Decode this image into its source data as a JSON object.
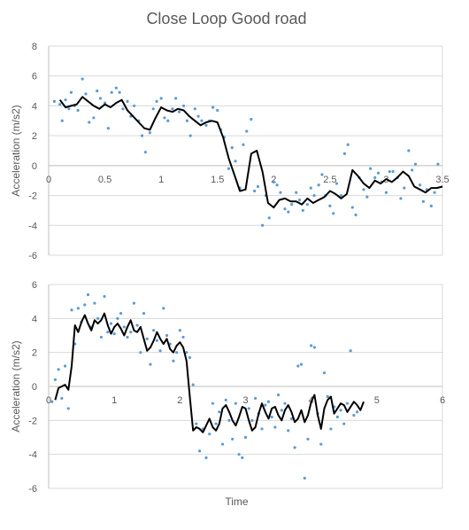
{
  "figure": {
    "title": "Close Loop Good road"
  },
  "chart_data": [
    {
      "type": "scatter",
      "title": "Close Loop Good road",
      "ylabel": "Acceleration (m/s2)",
      "xlabel": "",
      "xlim": [
        0,
        3.5
      ],
      "ylim": [
        -6,
        8
      ],
      "xticks": [
        "0",
        "0.5",
        "1",
        "1.5",
        "2",
        "2.5",
        "3",
        "3.5"
      ],
      "yticks": [
        "-6",
        "-4",
        "-2",
        "0",
        "2",
        "4",
        "6",
        "8"
      ],
      "grid": true,
      "legend": "none",
      "colors": {
        "points": "#5b9bd5",
        "line": "#000000",
        "grid": "#d9d9d9"
      },
      "series": [
        {
          "kind": "points",
          "x": [
            0.05,
            0.1,
            0.12,
            0.15,
            0.18,
            0.2,
            0.23,
            0.26,
            0.3,
            0.33,
            0.36,
            0.4,
            0.43,
            0.46,
            0.5,
            0.53,
            0.56,
            0.6,
            0.63,
            0.66,
            0.7,
            0.73,
            0.76,
            0.8,
            0.83,
            0.86,
            0.9,
            0.93,
            0.96,
            1.0,
            1.03,
            1.06,
            1.1,
            1.13,
            1.16,
            1.2,
            1.23,
            1.26,
            1.3,
            1.33,
            1.36,
            1.4,
            1.43,
            1.46,
            1.5,
            1.53,
            1.56,
            1.6,
            1.63,
            1.66,
            1.7,
            1.73,
            1.76,
            1.8,
            1.83,
            1.86,
            1.9,
            1.93,
            1.96,
            2.0,
            2.03,
            2.06,
            2.1,
            2.13,
            2.16,
            2.2,
            2.23,
            2.26,
            2.3,
            2.33,
            2.36,
            2.4,
            2.43,
            2.46,
            2.5,
            2.53,
            2.56,
            2.6,
            2.63,
            2.66,
            2.7,
            2.73,
            2.76,
            2.8,
            2.83,
            2.86,
            2.9,
            2.93,
            2.96,
            3.0,
            3.03,
            3.06,
            3.1,
            3.13,
            3.16,
            3.2,
            3.23,
            3.26,
            3.3,
            3.33,
            3.36,
            3.4,
            3.43,
            3.46
          ],
          "y": [
            4.3,
            4.1,
            3.0,
            4.4,
            3.8,
            4.9,
            4.0,
            3.7,
            5.8,
            4.8,
            2.9,
            3.2,
            5.0,
            4.5,
            4.2,
            2.5,
            4.9,
            5.2,
            4.9,
            3.8,
            4.3,
            3.3,
            4.0,
            3.0,
            2.0,
            0.9,
            2.2,
            3.8,
            4.3,
            4.5,
            3.2,
            3.0,
            3.8,
            4.5,
            3.6,
            4.0,
            3.0,
            2.0,
            3.8,
            3.3,
            3.0,
            2.7,
            3.0,
            3.9,
            3.7,
            2.4,
            1.9,
            -0.2,
            1.2,
            0.3,
            -1.5,
            1.4,
            2.3,
            3.1,
            -1.7,
            -1.4,
            -4.0,
            -2.0,
            -3.5,
            -1.1,
            -1.3,
            -1.8,
            -2.9,
            -3.1,
            -2.6,
            -1.8,
            -2.3,
            -3.0,
            -2.6,
            -1.5,
            -2.0,
            -1.3,
            -0.6,
            -2.0,
            -2.7,
            -3.2,
            -1.2,
            -2.0,
            0.8,
            1.4,
            -2.8,
            -3.3,
            -0.8,
            -1.6,
            -2.1,
            -0.2,
            -0.8,
            -0.5,
            -1.1,
            -1.8,
            -0.4,
            -0.4,
            -0.8,
            -2.2,
            -1.5,
            1.0,
            -0.3,
            0.1,
            -1.3,
            -2.4,
            -1.6,
            -2.7,
            -1.8,
            0.1
          ]
        },
        {
          "kind": "line",
          "x": [
            0.1,
            0.15,
            0.2,
            0.25,
            0.3,
            0.35,
            0.4,
            0.45,
            0.5,
            0.55,
            0.6,
            0.65,
            0.7,
            0.75,
            0.8,
            0.85,
            0.9,
            0.95,
            1.0,
            1.05,
            1.1,
            1.15,
            1.2,
            1.25,
            1.3,
            1.35,
            1.4,
            1.45,
            1.5,
            1.55,
            1.6,
            1.65,
            1.7,
            1.75,
            1.8,
            1.85,
            1.9,
            1.95,
            2.0,
            2.05,
            2.1,
            2.15,
            2.2,
            2.25,
            2.3,
            2.35,
            2.4,
            2.45,
            2.5,
            2.55,
            2.6,
            2.65,
            2.7,
            2.75,
            2.8,
            2.85,
            2.9,
            2.95,
            3.0,
            3.05,
            3.1,
            3.15,
            3.2,
            3.25,
            3.3,
            3.35,
            3.4,
            3.45,
            3.5
          ],
          "y": [
            4.4,
            3.9,
            4.0,
            4.1,
            4.6,
            4.3,
            4.0,
            3.8,
            4.1,
            3.9,
            4.2,
            4.4,
            3.7,
            3.3,
            2.9,
            2.5,
            2.4,
            3.2,
            3.9,
            3.7,
            3.6,
            3.8,
            3.7,
            3.3,
            3.0,
            2.7,
            2.9,
            3.0,
            2.9,
            1.9,
            0.5,
            -0.6,
            -1.7,
            -1.6,
            0.8,
            1.0,
            -0.4,
            -2.5,
            -2.8,
            -2.3,
            -2.2,
            -2.4,
            -2.4,
            -2.6,
            -2.2,
            -2.5,
            -2.3,
            -2.1,
            -1.7,
            -1.9,
            -2.2,
            -1.9,
            -0.3,
            -0.7,
            -1.2,
            -1.5,
            -1.0,
            -1.2,
            -0.9,
            -1.1,
            -0.8,
            -0.4,
            -0.7,
            -1.4,
            -1.6,
            -1.8,
            -1.5,
            -1.5,
            -1.4
          ]
        }
      ]
    },
    {
      "type": "scatter",
      "title": "",
      "ylabel": "Acceleration (m/s2)",
      "xlabel": "Time",
      "xlim": [
        0,
        6
      ],
      "ylim": [
        -6,
        6
      ],
      "xticks": [
        "0",
        "1",
        "2",
        "3",
        "4",
        "5",
        "6"
      ],
      "yticks": [
        "-6",
        "-4",
        "-2",
        "0",
        "2",
        "4",
        "6"
      ],
      "grid": true,
      "legend": "none",
      "colors": {
        "points": "#5b9bd5",
        "line": "#000000",
        "grid": "#d9d9d9"
      },
      "series": [
        {
          "kind": "points",
          "x": [
            0.05,
            0.1,
            0.15,
            0.2,
            0.25,
            0.3,
            0.35,
            0.4,
            0.45,
            0.5,
            0.55,
            0.6,
            0.65,
            0.7,
            0.75,
            0.8,
            0.85,
            0.9,
            0.95,
            1.0,
            1.05,
            1.1,
            1.15,
            1.2,
            1.25,
            1.3,
            1.35,
            1.4,
            1.45,
            1.5,
            1.55,
            1.6,
            1.65,
            1.7,
            1.75,
            1.8,
            1.85,
            1.9,
            1.95,
            2.0,
            2.05,
            2.1,
            2.15,
            2.2,
            2.25,
            2.3,
            2.35,
            2.4,
            2.45,
            2.5,
            2.55,
            2.6,
            2.65,
            2.7,
            2.75,
            2.8,
            2.85,
            2.9,
            2.95,
            3.0,
            3.05,
            3.1,
            3.15,
            3.2,
            3.25,
            3.3,
            3.35,
            3.4,
            3.45,
            3.5,
            3.55,
            3.6,
            3.65,
            3.7,
            3.75,
            3.8,
            3.85,
            3.9,
            3.95,
            4.0,
            4.05,
            4.1,
            4.15,
            4.2,
            4.25,
            4.3,
            4.35,
            4.4,
            4.45,
            4.5,
            4.55,
            4.6,
            4.65,
            4.7
          ],
          "y": [
            -0.9,
            0.4,
            1.0,
            -0.7,
            1.2,
            -1.3,
            4.5,
            2.5,
            4.6,
            3.8,
            4.8,
            5.4,
            3.5,
            4.9,
            4.0,
            2.9,
            5.3,
            3.2,
            3.7,
            3.1,
            4.0,
            4.3,
            3.5,
            2.9,
            3.2,
            4.9,
            3.6,
            2.0,
            4.3,
            2.8,
            1.3,
            3.3,
            2.7,
            2.1,
            4.6,
            3.0,
            2.5,
            1.5,
            2.0,
            3.3,
            2.9,
            2.0,
            1.7,
            0.1,
            -2.2,
            -3.8,
            -2.5,
            -4.2,
            -2.8,
            -1.0,
            -2.2,
            -1.5,
            -3.4,
            -0.8,
            -2.0,
            -3.1,
            -1.0,
            -4.0,
            -4.2,
            -3.0,
            -1.3,
            -2.0,
            -0.7,
            -1.6,
            -2.5,
            -1.1,
            -0.9,
            -1.8,
            -2.4,
            -0.5,
            -1.4,
            -1.0,
            -2.6,
            -1.9,
            -3.6,
            1.2,
            1.3,
            -5.4,
            -3.1,
            2.4,
            2.3,
            -1.6,
            -3.4,
            0.8,
            -0.6,
            -2.5,
            -1.2,
            -1.8,
            -1.4,
            -2.2,
            -1.0,
            2.1,
            -1.7,
            -1.5
          ]
        },
        {
          "kind": "line",
          "x": [
            0.1,
            0.15,
            0.2,
            0.25,
            0.3,
            0.35,
            0.4,
            0.45,
            0.5,
            0.55,
            0.6,
            0.65,
            0.7,
            0.75,
            0.8,
            0.85,
            0.9,
            0.95,
            1.0,
            1.05,
            1.1,
            1.15,
            1.2,
            1.25,
            1.3,
            1.35,
            1.4,
            1.45,
            1.5,
            1.55,
            1.6,
            1.65,
            1.7,
            1.75,
            1.8,
            1.85,
            1.9,
            1.95,
            2.0,
            2.05,
            2.1,
            2.15,
            2.2,
            2.25,
            2.3,
            2.35,
            2.4,
            2.45,
            2.5,
            2.55,
            2.6,
            2.65,
            2.7,
            2.75,
            2.8,
            2.85,
            2.9,
            2.95,
            3.0,
            3.05,
            3.1,
            3.15,
            3.2,
            3.25,
            3.3,
            3.35,
            3.4,
            3.45,
            3.5,
            3.55,
            3.6,
            3.65,
            3.7,
            3.75,
            3.8,
            3.85,
            3.9,
            3.95,
            4.0,
            4.05,
            4.1,
            4.15,
            4.2,
            4.25,
            4.3,
            4.35,
            4.4,
            4.45,
            4.5,
            4.55,
            4.6,
            4.65,
            4.7,
            4.75,
            4.8
          ],
          "y": [
            -0.8,
            -0.1,
            0.0,
            0.1,
            -0.2,
            1.2,
            3.6,
            3.2,
            3.8,
            4.2,
            3.7,
            3.3,
            3.9,
            3.7,
            3.9,
            4.3,
            3.6,
            3.1,
            3.5,
            3.7,
            3.4,
            3.0,
            3.5,
            3.9,
            3.3,
            3.2,
            3.5,
            2.8,
            2.1,
            2.3,
            2.7,
            3.2,
            2.8,
            2.5,
            2.8,
            2.2,
            2.0,
            2.4,
            2.6,
            2.3,
            1.5,
            -0.6,
            -2.6,
            -2.4,
            -2.5,
            -2.7,
            -2.3,
            -1.9,
            -2.4,
            -2.6,
            -2.2,
            -1.3,
            -1.1,
            -1.5,
            -2.0,
            -2.3,
            -1.8,
            -1.2,
            -1.3,
            -2.0,
            -2.6,
            -2.4,
            -1.6,
            -1.0,
            -1.5,
            -1.9,
            -1.3,
            -1.2,
            -1.7,
            -2.0,
            -1.4,
            -1.1,
            -1.5,
            -2.1,
            -1.9,
            -1.4,
            -2.1,
            -1.7,
            -0.9,
            -0.5,
            -1.7,
            -2.5,
            -1.3,
            -0.8,
            -0.6,
            -1.6,
            -1.3,
            -1.0,
            -1.1,
            -1.5,
            -1.2,
            -0.9,
            -1.1,
            -1.4,
            -0.9
          ]
        }
      ]
    }
  ]
}
